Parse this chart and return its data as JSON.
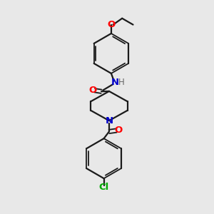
{
  "background_color": "#e8e8e8",
  "bond_color": "#1a1a1a",
  "nitrogen_color": "#0000cc",
  "oxygen_color": "#ff0000",
  "chlorine_color": "#00aa00",
  "hydrogen_color": "#666666",
  "figsize": [
    3.0,
    3.0
  ],
  "dpi": 100,
  "xlim": [
    0,
    10
  ],
  "ylim": [
    0,
    10
  ]
}
